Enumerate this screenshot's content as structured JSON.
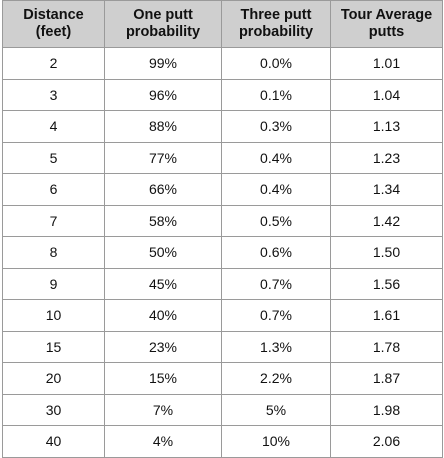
{
  "table": {
    "headers": [
      [
        "Distance",
        "(feet)"
      ],
      [
        "One putt",
        "probability"
      ],
      [
        "Three putt",
        "probability"
      ],
      [
        "Tour Average",
        "putts"
      ]
    ],
    "rows": [
      [
        "2",
        "99%",
        "0.0%",
        "1.01"
      ],
      [
        "3",
        "96%",
        "0.1%",
        "1.04"
      ],
      [
        "4",
        "88%",
        "0.3%",
        "1.13"
      ],
      [
        "5",
        "77%",
        "0.4%",
        "1.23"
      ],
      [
        "6",
        "66%",
        "0.4%",
        "1.34"
      ],
      [
        "7",
        "58%",
        "0.5%",
        "1.42"
      ],
      [
        "8",
        "50%",
        "0.6%",
        "1.50"
      ],
      [
        "9",
        "45%",
        "0.7%",
        "1.56"
      ],
      [
        "10",
        "40%",
        "0.7%",
        "1.61"
      ],
      [
        "15",
        "23%",
        "1.3%",
        "1.78"
      ],
      [
        "20",
        "15%",
        "2.2%",
        "1.87"
      ],
      [
        "30",
        "7%",
        "5%",
        "1.98"
      ],
      [
        "40",
        "4%",
        "10%",
        "2.06"
      ]
    ]
  }
}
